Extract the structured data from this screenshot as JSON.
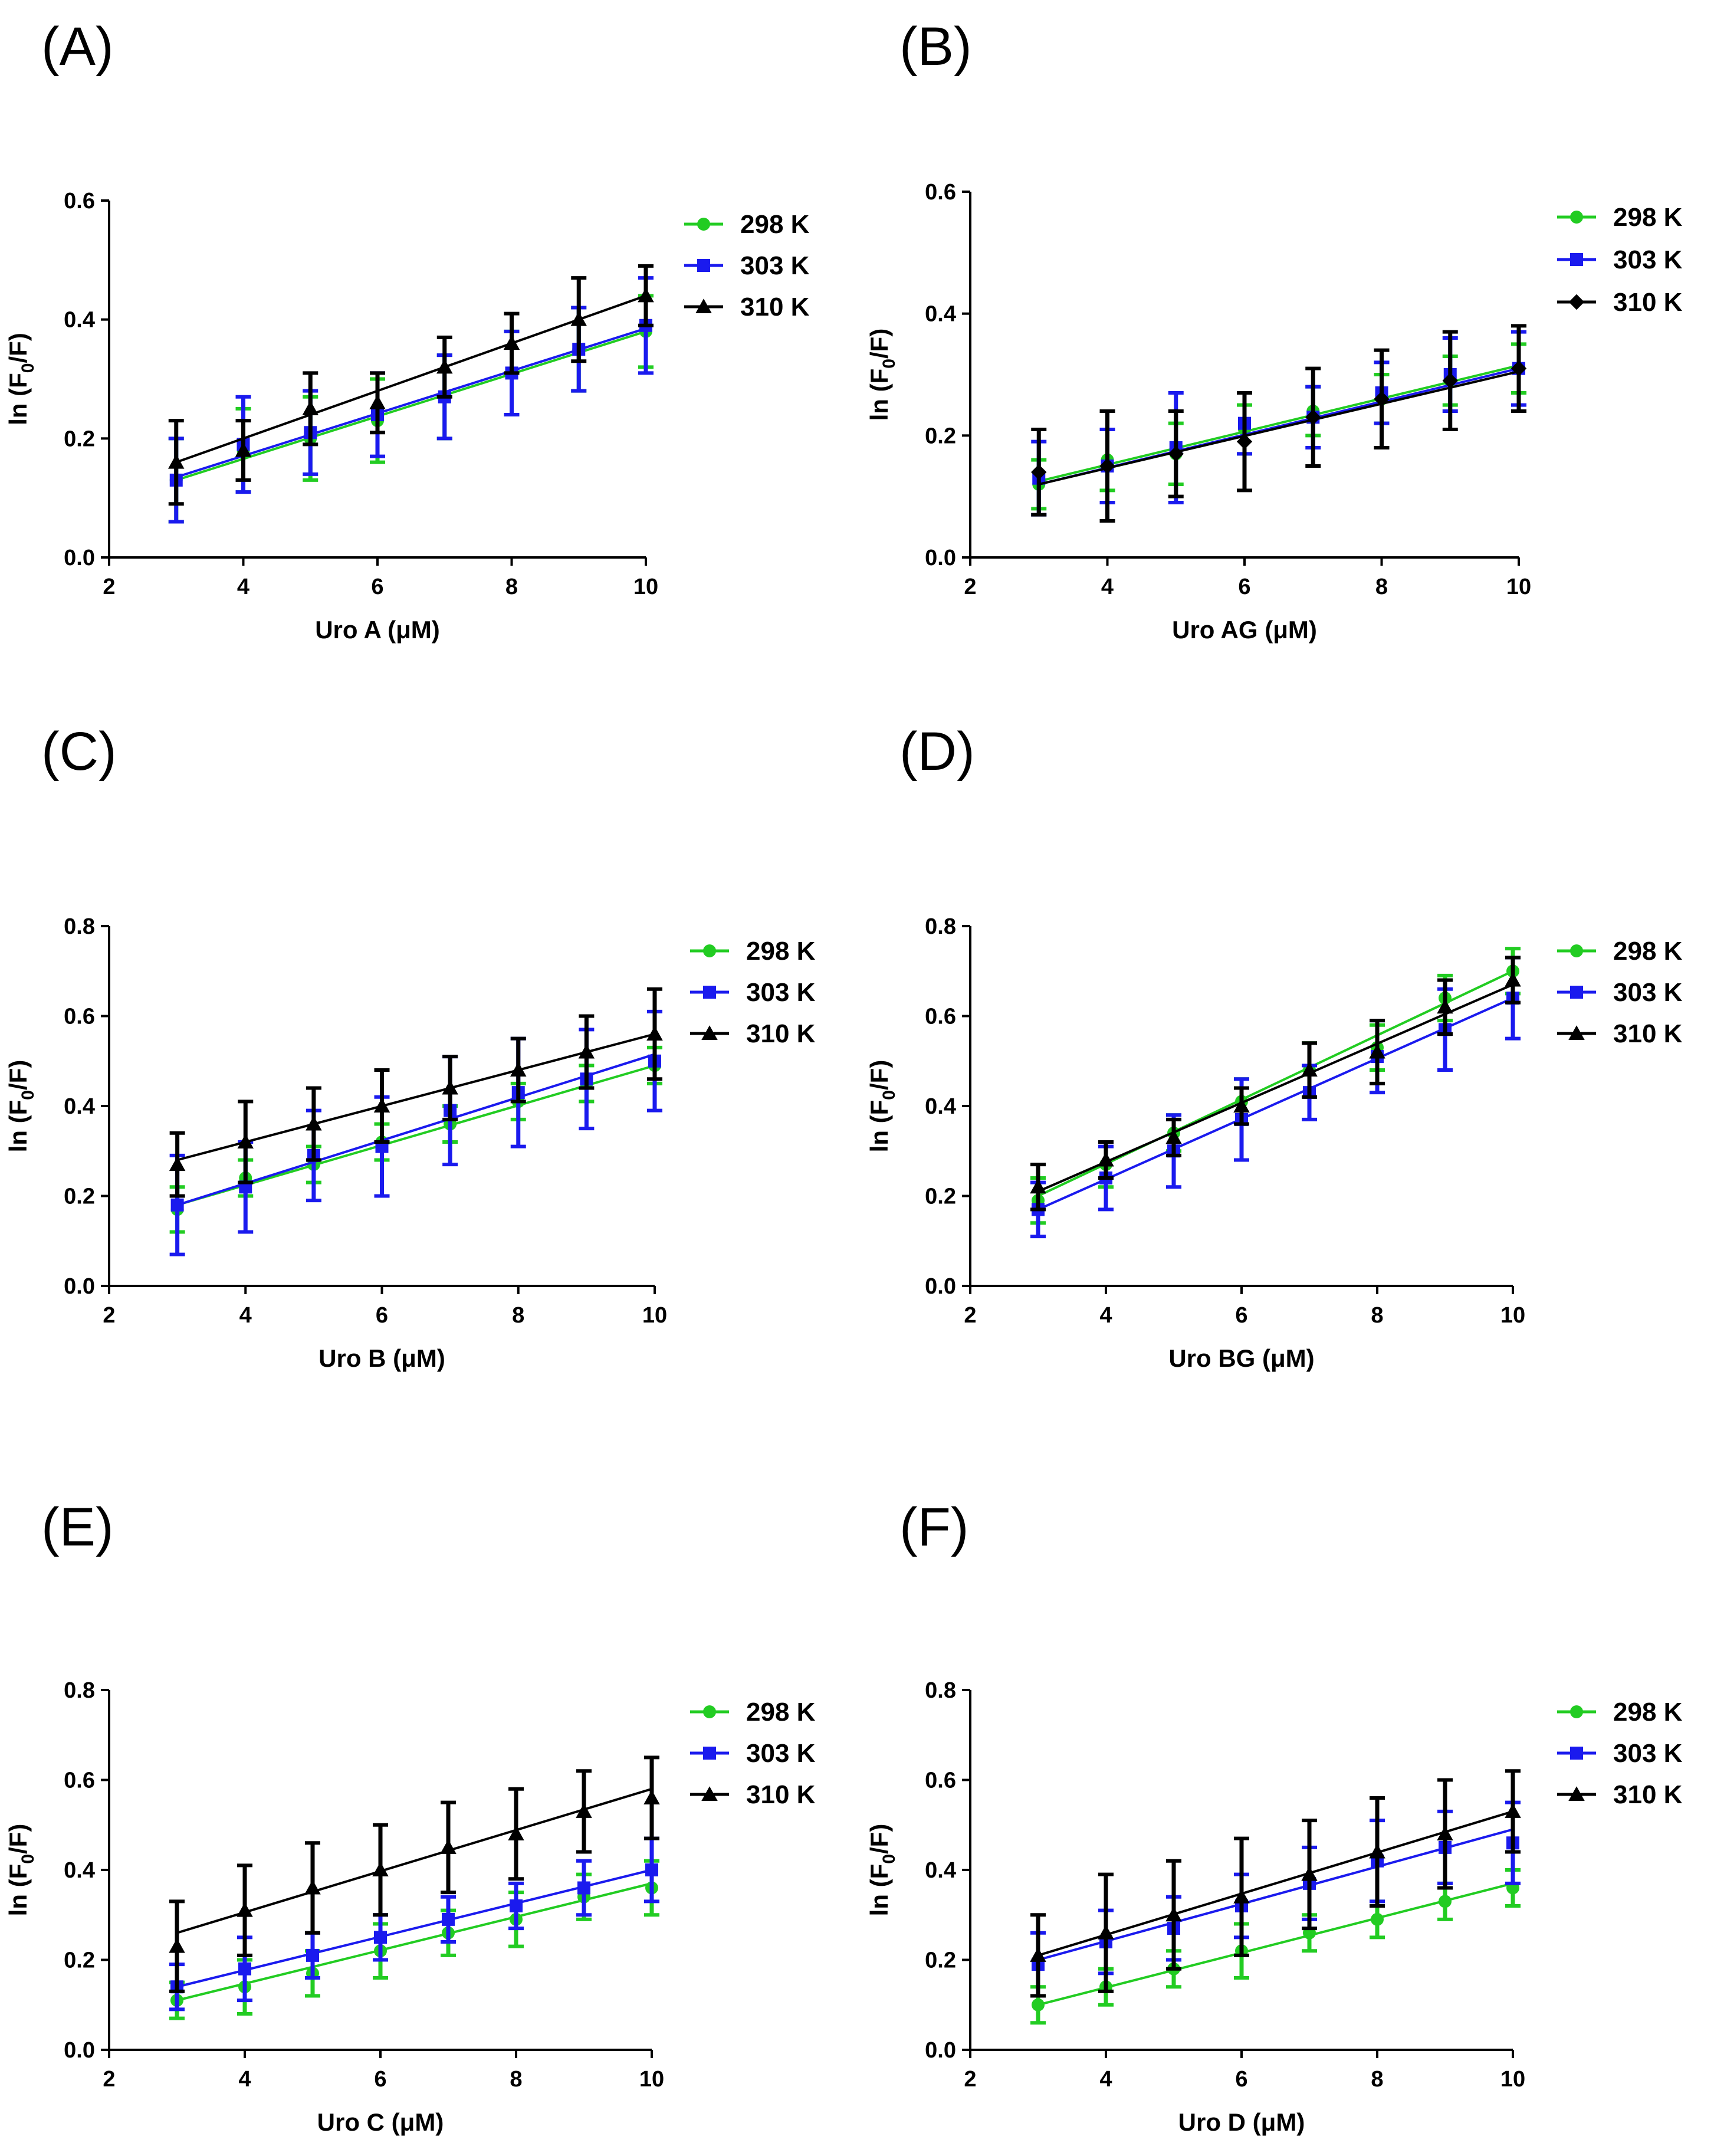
{
  "chart_data": [
    {
      "type": "line",
      "panel_label": "(A)",
      "xlabel": "Uro A (μM)",
      "ylabel": "ln (F0/F)",
      "ylabel_parts": [
        "ln (F",
        "0",
        "/F)"
      ],
      "xlim": [
        2,
        10
      ],
      "ylim": [
        0,
        0.6
      ],
      "x_ticks": [
        2,
        4,
        6,
        8,
        10
      ],
      "y_ticks": [
        0.0,
        0.2,
        0.4,
        0.6
      ],
      "y_tick_labels": [
        "0.0",
        "0.2",
        "0.4",
        "0.6"
      ],
      "legend_position": "right",
      "x": [
        3,
        4,
        5,
        6,
        7,
        8,
        9,
        10
      ],
      "series": [
        {
          "name": "298 K",
          "color": "#22cc22",
          "marker": "circle",
          "values": [
            0.13,
            0.18,
            0.2,
            0.23,
            0.27,
            0.31,
            0.35,
            0.38
          ],
          "errors": [
            0.07,
            0.07,
            0.07,
            0.07,
            0.07,
            0.07,
            0.07,
            0.06
          ],
          "fit": [
            0.13,
            0.38
          ]
        },
        {
          "name": "303 K",
          "color": "#1a1aee",
          "marker": "square",
          "values": [
            0.13,
            0.19,
            0.21,
            0.24,
            0.27,
            0.31,
            0.35,
            0.39
          ],
          "errors": [
            0.07,
            0.08,
            0.07,
            0.07,
            0.07,
            0.07,
            0.07,
            0.08
          ],
          "fit": [
            0.135,
            0.385
          ]
        },
        {
          "name": "310 K",
          "color": "#000000",
          "marker": "triangle",
          "values": [
            0.16,
            0.18,
            0.25,
            0.26,
            0.32,
            0.36,
            0.4,
            0.44
          ],
          "errors": [
            0.07,
            0.05,
            0.06,
            0.05,
            0.05,
            0.05,
            0.07,
            0.05
          ],
          "fit": [
            0.16,
            0.44
          ]
        }
      ]
    },
    {
      "type": "line",
      "panel_label": "(B)",
      "xlabel": "Uro AG (μM)",
      "ylabel": "ln (F0/F)",
      "ylabel_parts": [
        "ln (F",
        "0",
        "/F)"
      ],
      "xlim": [
        2,
        10
      ],
      "ylim": [
        0,
        0.6
      ],
      "x_ticks": [
        2,
        4,
        6,
        8,
        10
      ],
      "y_ticks": [
        0.0,
        0.2,
        0.4,
        0.6
      ],
      "y_tick_labels": [
        "0.0",
        "0.2",
        "0.4",
        "0.6"
      ],
      "legend_position": "top-right",
      "x": [
        3,
        4,
        5,
        6,
        7,
        8,
        9,
        10
      ],
      "series": [
        {
          "name": "298 K",
          "color": "#22cc22",
          "marker": "circle",
          "values": [
            0.12,
            0.16,
            0.17,
            0.21,
            0.24,
            0.26,
            0.29,
            0.31
          ],
          "errors": [
            0.04,
            0.05,
            0.05,
            0.04,
            0.04,
            0.04,
            0.04,
            0.04
          ],
          "fit": [
            0.125,
            0.315
          ]
        },
        {
          "name": "303 K",
          "color": "#1a1aee",
          "marker": "square",
          "values": [
            0.13,
            0.15,
            0.18,
            0.22,
            0.23,
            0.27,
            0.3,
            0.31
          ],
          "errors": [
            0.06,
            0.06,
            0.09,
            0.05,
            0.05,
            0.05,
            0.06,
            0.06
          ],
          "fit": [
            0.12,
            0.31
          ]
        },
        {
          "name": "310 K",
          "color": "#000000",
          "marker": "diamond",
          "values": [
            0.14,
            0.15,
            0.17,
            0.19,
            0.23,
            0.26,
            0.29,
            0.31
          ],
          "errors": [
            0.07,
            0.09,
            0.07,
            0.08,
            0.08,
            0.08,
            0.08,
            0.07
          ],
          "fit": [
            0.12,
            0.305
          ]
        }
      ]
    },
    {
      "type": "line",
      "panel_label": "(C)",
      "xlabel": "Uro B (μM)",
      "ylabel": "ln (F0/F)",
      "ylabel_parts": [
        "ln (F",
        "0",
        "/F)"
      ],
      "xlim": [
        2,
        10
      ],
      "ylim": [
        0,
        0.8
      ],
      "x_ticks": [
        2,
        4,
        6,
        8,
        10
      ],
      "y_ticks": [
        0.0,
        0.2,
        0.4,
        0.6,
        0.8
      ],
      "y_tick_labels": [
        "0.0",
        "0.2",
        "0.4",
        "0.6",
        "0.8"
      ],
      "legend_position": "right",
      "x": [
        3,
        4,
        5,
        6,
        7,
        8,
        9,
        10
      ],
      "series": [
        {
          "name": "298 K",
          "color": "#22cc22",
          "marker": "circle",
          "values": [
            0.17,
            0.24,
            0.27,
            0.32,
            0.36,
            0.41,
            0.45,
            0.49
          ],
          "errors": [
            0.05,
            0.04,
            0.04,
            0.04,
            0.04,
            0.04,
            0.04,
            0.04
          ],
          "fit": [
            0.18,
            0.49
          ]
        },
        {
          "name": "303 K",
          "color": "#1a1aee",
          "marker": "square",
          "values": [
            0.18,
            0.22,
            0.29,
            0.31,
            0.39,
            0.43,
            0.46,
            0.5
          ],
          "errors": [
            0.11,
            0.1,
            0.1,
            0.11,
            0.12,
            0.12,
            0.11,
            0.11
          ],
          "fit": [
            0.18,
            0.515
          ]
        },
        {
          "name": "310 K",
          "color": "#000000",
          "marker": "triangle",
          "values": [
            0.27,
            0.32,
            0.36,
            0.4,
            0.44,
            0.48,
            0.52,
            0.56
          ],
          "errors": [
            0.07,
            0.09,
            0.08,
            0.08,
            0.07,
            0.07,
            0.08,
            0.1
          ],
          "fit": [
            0.28,
            0.56
          ]
        }
      ]
    },
    {
      "type": "line",
      "panel_label": "(D)",
      "xlabel": "Uro BG (μM)",
      "ylabel": "ln (F0/F)",
      "ylabel_parts": [
        "ln (F",
        "0",
        "/F)"
      ],
      "xlim": [
        2,
        10
      ],
      "ylim": [
        0,
        0.8
      ],
      "x_ticks": [
        2,
        4,
        6,
        8,
        10
      ],
      "y_ticks": [
        0.0,
        0.2,
        0.4,
        0.6,
        0.8
      ],
      "y_tick_labels": [
        "0.0",
        "0.2",
        "0.4",
        "0.6",
        "0.8"
      ],
      "legend_position": "right",
      "x": [
        3,
        4,
        5,
        6,
        7,
        8,
        9,
        10
      ],
      "series": [
        {
          "name": "298 K",
          "color": "#22cc22",
          "marker": "circle",
          "values": [
            0.19,
            0.27,
            0.34,
            0.41,
            0.48,
            0.53,
            0.64,
            0.7
          ],
          "errors": [
            0.05,
            0.05,
            0.04,
            0.05,
            0.06,
            0.05,
            0.05,
            0.05
          ],
          "fit": [
            0.2,
            0.7
          ]
        },
        {
          "name": "303 K",
          "color": "#1a1aee",
          "marker": "square",
          "values": [
            0.17,
            0.24,
            0.3,
            0.37,
            0.43,
            0.51,
            0.57,
            0.64
          ],
          "errors": [
            0.06,
            0.07,
            0.08,
            0.09,
            0.06,
            0.08,
            0.09,
            0.09
          ],
          "fit": [
            0.17,
            0.64
          ]
        },
        {
          "name": "310 K",
          "color": "#000000",
          "marker": "triangle",
          "values": [
            0.22,
            0.28,
            0.33,
            0.4,
            0.48,
            0.52,
            0.62,
            0.68
          ],
          "errors": [
            0.05,
            0.04,
            0.04,
            0.04,
            0.06,
            0.07,
            0.06,
            0.05
          ],
          "fit": [
            0.21,
            0.67
          ]
        }
      ]
    },
    {
      "type": "line",
      "panel_label": "(E)",
      "xlabel": "Uro C (μM)",
      "ylabel": "ln (F0/F)",
      "ylabel_parts": [
        "ln (F",
        "0",
        "/F)"
      ],
      "xlim": [
        2,
        10
      ],
      "ylim": [
        0,
        0.8
      ],
      "x_ticks": [
        2,
        4,
        6,
        8,
        10
      ],
      "y_ticks": [
        0.0,
        0.2,
        0.4,
        0.6,
        0.8
      ],
      "y_tick_labels": [
        "0.0",
        "0.2",
        "0.4",
        "0.6",
        "0.8"
      ],
      "legend_position": "right",
      "x": [
        3,
        4,
        5,
        6,
        7,
        8,
        9,
        10
      ],
      "series": [
        {
          "name": "298 K",
          "color": "#22cc22",
          "marker": "circle",
          "values": [
            0.11,
            0.14,
            0.17,
            0.22,
            0.26,
            0.29,
            0.34,
            0.36
          ],
          "errors": [
            0.04,
            0.06,
            0.05,
            0.06,
            0.05,
            0.06,
            0.05,
            0.06
          ],
          "fit": [
            0.11,
            0.37
          ]
        },
        {
          "name": "303 K",
          "color": "#1a1aee",
          "marker": "square",
          "values": [
            0.14,
            0.18,
            0.21,
            0.25,
            0.29,
            0.32,
            0.36,
            0.4
          ],
          "errors": [
            0.05,
            0.07,
            0.05,
            0.05,
            0.05,
            0.05,
            0.06,
            0.07
          ],
          "fit": [
            0.14,
            0.4
          ]
        },
        {
          "name": "310 K",
          "color": "#000000",
          "marker": "triangle",
          "values": [
            0.23,
            0.31,
            0.36,
            0.4,
            0.45,
            0.48,
            0.53,
            0.56
          ],
          "errors": [
            0.1,
            0.1,
            0.1,
            0.1,
            0.1,
            0.1,
            0.09,
            0.09
          ],
          "fit": [
            0.26,
            0.58
          ]
        }
      ]
    },
    {
      "type": "line",
      "panel_label": "(F)",
      "xlabel": "Uro D (μM)",
      "ylabel": "ln (F0/F)",
      "ylabel_parts": [
        "ln (F",
        "0",
        "/F)"
      ],
      "xlim": [
        2,
        10
      ],
      "ylim": [
        0,
        0.8
      ],
      "x_ticks": [
        2,
        4,
        6,
        8,
        10
      ],
      "y_ticks": [
        0.0,
        0.2,
        0.4,
        0.6,
        0.8
      ],
      "y_tick_labels": [
        "0.0",
        "0.2",
        "0.4",
        "0.6",
        "0.8"
      ],
      "legend_position": "right",
      "x": [
        3,
        4,
        5,
        6,
        7,
        8,
        9,
        10
      ],
      "series": [
        {
          "name": "298 K",
          "color": "#22cc22",
          "marker": "circle",
          "values": [
            0.1,
            0.14,
            0.18,
            0.22,
            0.26,
            0.29,
            0.33,
            0.36
          ],
          "errors": [
            0.04,
            0.04,
            0.04,
            0.06,
            0.04,
            0.04,
            0.04,
            0.04
          ],
          "fit": [
            0.1,
            0.37
          ]
        },
        {
          "name": "303 K",
          "color": "#1a1aee",
          "marker": "square",
          "values": [
            0.19,
            0.24,
            0.27,
            0.32,
            0.37,
            0.42,
            0.45,
            0.46
          ],
          "errors": [
            0.07,
            0.07,
            0.07,
            0.07,
            0.08,
            0.09,
            0.08,
            0.09
          ],
          "fit": [
            0.2,
            0.49
          ]
        },
        {
          "name": "310 K",
          "color": "#000000",
          "marker": "triangle",
          "values": [
            0.21,
            0.26,
            0.3,
            0.34,
            0.39,
            0.44,
            0.48,
            0.53
          ],
          "errors": [
            0.09,
            0.13,
            0.12,
            0.13,
            0.12,
            0.12,
            0.12,
            0.09
          ],
          "fit": [
            0.21,
            0.53
          ]
        }
      ]
    }
  ]
}
